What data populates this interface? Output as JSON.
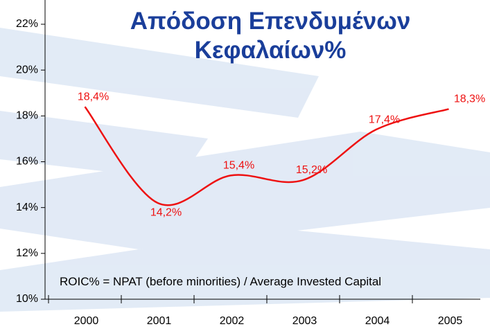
{
  "chart_data": {
    "type": "line",
    "title": "Απόδοση Επενδυμένων Κεφαλαίων%",
    "annotation": "ROIC% = NPAT (before minorities) / Average Invested Capital",
    "categories": [
      "2000",
      "2001",
      "2002",
      "2003",
      "2004",
      "2005"
    ],
    "series": [
      {
        "name": "ROIC%",
        "color": "#ee1111",
        "values": [
          18.4,
          14.2,
          15.4,
          15.2,
          17.4,
          18.3
        ],
        "value_labels": [
          "18,4%",
          "14,2%",
          "15,4%",
          "15,2%",
          "17,4%",
          "18,3%"
        ]
      }
    ],
    "ylim": [
      10,
      22
    ],
    "yticks": [
      {
        "value": 10,
        "label": "10%"
      },
      {
        "value": 12,
        "label": "12%"
      },
      {
        "value": 14,
        "label": "14%"
      },
      {
        "value": 16,
        "label": "16%"
      },
      {
        "value": 18,
        "label": "18%"
      },
      {
        "value": 20,
        "label": "20%"
      },
      {
        "value": 22,
        "label": "22%"
      }
    ],
    "grid": false
  }
}
